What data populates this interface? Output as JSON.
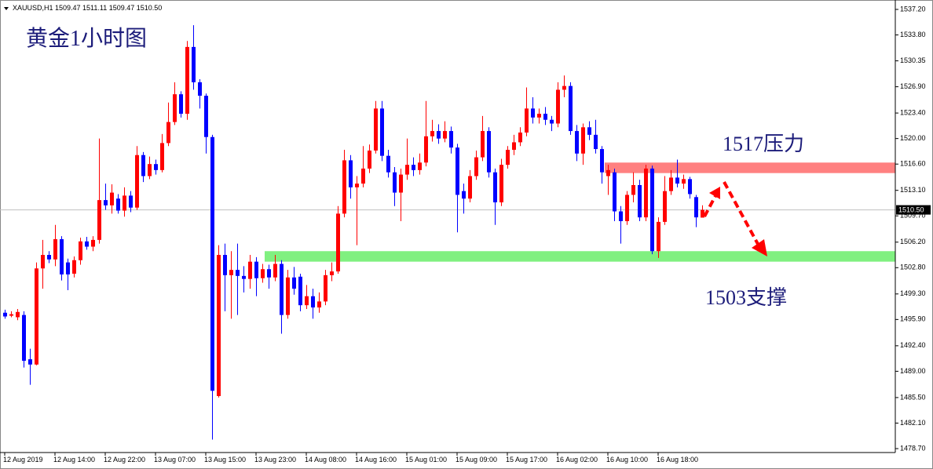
{
  "chart_data": {
    "type": "candlestick",
    "header": "XAUUSD,H1  1509.47 1511.11 1509.47 1510.50",
    "title": "黄金1小时图",
    "annotations": [
      "1517压力",
      "1503支撑"
    ],
    "up_color": "#ff0000",
    "down_color": "#0000ff",
    "resistance_zone": {
      "range": [
        1515.4,
        1516.8
      ],
      "color": "#ff8080"
    },
    "support_zone": {
      "range": [
        1503.6,
        1505.0
      ],
      "color": "#80f080"
    },
    "price_line": {
      "value": 1510.5,
      "label": "1510.50"
    },
    "categories": [
      "12 Aug 2019",
      null,
      null,
      null,
      null,
      null,
      null,
      null,
      "12 Aug 14:00",
      null,
      null,
      null,
      null,
      null,
      null,
      null,
      "12 Aug 22:00",
      null,
      null,
      null,
      null,
      null,
      null,
      null,
      "13 Aug 07:00",
      null,
      null,
      null,
      null,
      null,
      null,
      null,
      "13 Aug 15:00",
      null,
      null,
      null,
      null,
      null,
      null,
      null,
      "13 Aug 23:00",
      null,
      null,
      null,
      null,
      null,
      null,
      null,
      "14 Aug 08:00",
      null,
      null,
      null,
      null,
      null,
      null,
      null,
      "14 Aug 16:00",
      null,
      null,
      null,
      null,
      null,
      null,
      null,
      "15 Aug 01:00",
      null,
      null,
      null,
      null,
      null,
      null,
      null,
      "15 Aug 09:00",
      null,
      null,
      null,
      null,
      null,
      null,
      null,
      "15 Aug 17:00",
      null,
      null,
      null,
      null,
      null,
      null,
      null,
      "16 Aug 02:00",
      null,
      null,
      null,
      null,
      null,
      null,
      null,
      "16 Aug 10:00",
      null,
      null,
      null,
      null,
      null,
      null,
      null,
      "16 Aug 18:00",
      null,
      null,
      null,
      null,
      null,
      null,
      null
    ],
    "open": [
      1496.8,
      1496.4,
      1496.2,
      1496.5,
      1490.6,
      1489.9,
      1502.7,
      1504.5,
      1503.9,
      1506.6,
      1503.5,
      1502.0,
      1503.8,
      1506.3,
      1505.6,
      1506.5,
      1511.8,
      1511.1,
      1512.0,
      1510.4,
      1512.4,
      1510.8,
      1517.8,
      1515.0,
      1516.6,
      1515.8,
      1519.4,
      1522.2,
      1525.9,
      1523.3,
      1532.2,
      1527.5,
      1525.7,
      1520.2,
      1485.7,
      1504.5,
      1501.8,
      1502.5,
      1501.7,
      1501.3,
      1503.6,
      1501.4,
      1502.6,
      1501.5,
      1503.3,
      1496.5,
      1501.5,
      1501.6,
      1497.8,
      1499.0,
      1497.5,
      1498.3,
      1501.8,
      1502.3,
      1510.0,
      1517.1,
      1513.5,
      1514.0,
      1516.0,
      1518.4,
      1524.0,
      1517.7,
      1515.5,
      1512.8,
      1515.2,
      1516.5,
      1515.8,
      1516.8,
      1520.3,
      1521.0,
      1520.0,
      1521.0,
      1518.8,
      1513.0,
      1512.0,
      1515.0,
      1517.5,
      1521.0,
      1515.5,
      1511.5,
      1516.5,
      1518.5,
      1519.5,
      1520.8,
      1524.0,
      1522.8,
      1523.3,
      1522.5,
      1522.0,
      1526.5,
      1527.0,
      1521.0,
      1518.0,
      1521.5,
      1520.5,
      1518.6,
      1515.0,
      1515.5,
      1510.3,
      1509.0,
      1512.5,
      1513.8,
      1509.5,
      1516.0,
      1505.0,
      1508.9,
      1513.0,
      1514.8,
      1514.0,
      1514.6,
      1512.2,
      1509.47
    ],
    "high": [
      1497.2,
      1497.0,
      1497.3,
      1497.0,
      1492.0,
      1503.5,
      1506.5,
      1505.0,
      1508.5,
      1507.0,
      1504.0,
      1504.3,
      1506.8,
      1506.9,
      1507.0,
      1520.0,
      1514.0,
      1513.9,
      1512.6,
      1513.5,
      1513.0,
      1519.0,
      1518.2,
      1517.6,
      1517.2,
      1520.6,
      1524.8,
      1527.5,
      1526.3,
      1533.0,
      1535.1,
      1527.9,
      1526.0,
      1520.5,
      1505.8,
      1506.0,
      1505.0,
      1506.0,
      1503.0,
      1504.5,
      1504.2,
      1503.3,
      1503.2,
      1504.5,
      1503.8,
      1502.5,
      1502.9,
      1502.0,
      1500.5,
      1500.0,
      1499.5,
      1502.5,
      1503.5,
      1511.0,
      1518.5,
      1517.8,
      1515.0,
      1519.0,
      1519.2,
      1525.0,
      1525.0,
      1518.5,
      1516.2,
      1516.0,
      1520.0,
      1517.5,
      1518.0,
      1525.0,
      1522.5,
      1521.9,
      1522.3,
      1521.6,
      1519.3,
      1514.0,
      1515.8,
      1518.4,
      1523.0,
      1521.5,
      1516.0,
      1517.3,
      1519.0,
      1520.5,
      1521.5,
      1526.8,
      1525.5,
      1524.0,
      1524.2,
      1523.0,
      1527.5,
      1528.4,
      1527.5,
      1521.8,
      1522.0,
      1522.3,
      1522.5,
      1519.0,
      1516.5,
      1516.0,
      1511.0,
      1513.0,
      1515.5,
      1514.5,
      1516.5,
      1516.4,
      1509.5,
      1515.0,
      1515.8,
      1517.2,
      1515.2,
      1514.9,
      1512.5,
      1511.11
    ],
    "low": [
      1496.0,
      1496.2,
      1495.8,
      1489.5,
      1487.2,
      1489.8,
      1500.0,
      1503.4,
      1503.0,
      1501.1,
      1499.8,
      1501.5,
      1503.2,
      1505.2,
      1505.0,
      1506.0,
      1510.5,
      1510.0,
      1510.0,
      1509.6,
      1510.2,
      1510.5,
      1514.2,
      1514.6,
      1515.2,
      1515.5,
      1519.0,
      1521.8,
      1522.8,
      1522.5,
      1526.5,
      1524.0,
      1518.0,
      1479.9,
      1485.5,
      1497.0,
      1496.0,
      1496.5,
      1499.5,
      1500.0,
      1499.0,
      1500.8,
      1500.0,
      1501.0,
      1494.0,
      1496.0,
      1499.2,
      1497.0,
      1497.3,
      1496.0,
      1496.8,
      1497.8,
      1501.0,
      1502.0,
      1509.5,
      1512.0,
      1505.8,
      1513.5,
      1515.4,
      1518.0,
      1517.0,
      1514.8,
      1511.0,
      1509.0,
      1514.5,
      1515.0,
      1515.2,
      1516.3,
      1519.6,
      1519.3,
      1519.5,
      1518.0,
      1507.5,
      1510.0,
      1511.5,
      1514.5,
      1517.0,
      1514.8,
      1508.5,
      1511.0,
      1516.0,
      1517.8,
      1519.0,
      1520.3,
      1522.0,
      1522.0,
      1521.8,
      1521.0,
      1521.5,
      1525.5,
      1520.5,
      1517.0,
      1516.5,
      1519.8,
      1518.0,
      1514.0,
      1512.5,
      1509.0,
      1506.0,
      1508.5,
      1511.5,
      1509.0,
      1509.0,
      1504.6,
      1504.1,
      1508.5,
      1512.5,
      1513.5,
      1513.3,
      1512.0,
      1508.2,
      1509.47
    ],
    "close": [
      1496.3,
      1496.6,
      1496.9,
      1490.4,
      1489.9,
      1502.7,
      1504.5,
      1503.9,
      1506.6,
      1501.9,
      1501.9,
      1503.8,
      1506.3,
      1505.6,
      1506.5,
      1511.8,
      1511.1,
      1512.8,
      1510.4,
      1512.4,
      1510.8,
      1517.8,
      1515.0,
      1516.6,
      1515.8,
      1519.4,
      1522.2,
      1525.9,
      1523.3,
      1532.2,
      1527.5,
      1525.7,
      1520.2,
      1486.4,
      1504.5,
      1501.8,
      1502.5,
      1501.7,
      1501.3,
      1503.6,
      1501.4,
      1502.6,
      1501.5,
      1503.3,
      1496.5,
      1501.5,
      1500.0,
      1497.8,
      1499.0,
      1497.5,
      1498.3,
      1501.8,
      1502.3,
      1510.0,
      1517.1,
      1513.5,
      1514.0,
      1516.0,
      1518.4,
      1524.0,
      1517.7,
      1515.5,
      1512.8,
      1515.2,
      1516.5,
      1515.8,
      1516.8,
      1520.3,
      1521.0,
      1520.0,
      1521.0,
      1518.8,
      1512.5,
      1512.0,
      1515.0,
      1517.5,
      1521.0,
      1515.5,
      1511.5,
      1516.5,
      1518.5,
      1519.5,
      1520.8,
      1524.0,
      1522.8,
      1523.3,
      1522.5,
      1522.0,
      1526.5,
      1527.0,
      1521.0,
      1518.0,
      1521.5,
      1520.5,
      1518.6,
      1515.5,
      1515.8,
      1510.3,
      1509.0,
      1512.5,
      1513.8,
      1509.5,
      1516.0,
      1505.0,
      1508.9,
      1513.0,
      1514.8,
      1514.0,
      1514.6,
      1512.6,
      1509.5,
      1510.5
    ],
    "ylim": [
      1478.7,
      1537.2
    ],
    "yticks": [
      {
        "value": 1537.2,
        "label": "1537.20"
      },
      {
        "value": 1533.8,
        "label": "1533.80"
      },
      {
        "value": 1530.35,
        "label": "1530.35"
      },
      {
        "value": 1526.9,
        "label": "1526.90"
      },
      {
        "value": 1523.4,
        "label": "1523.40"
      },
      {
        "value": 1520,
        "label": "1520.00"
      },
      {
        "value": 1516.6,
        "label": "1516.60"
      },
      {
        "value": 1513.1,
        "label": "1513.10"
      },
      {
        "value": 1509.7,
        "label": "1509.70"
      },
      {
        "value": 1506.2,
        "label": "1506.20"
      },
      {
        "value": 1502.8,
        "label": "1502.80"
      },
      {
        "value": 1499.3,
        "label": "1499.30"
      },
      {
        "value": 1495.9,
        "label": "1495.90"
      },
      {
        "value": 1492.4,
        "label": "1492.40"
      },
      {
        "value": 1489,
        "label": "1489.00"
      },
      {
        "value": 1485.5,
        "label": "1485.50"
      },
      {
        "value": 1482.1,
        "label": "1482.10"
      },
      {
        "value": 1478.7,
        "label": "1478.70"
      }
    ]
  }
}
